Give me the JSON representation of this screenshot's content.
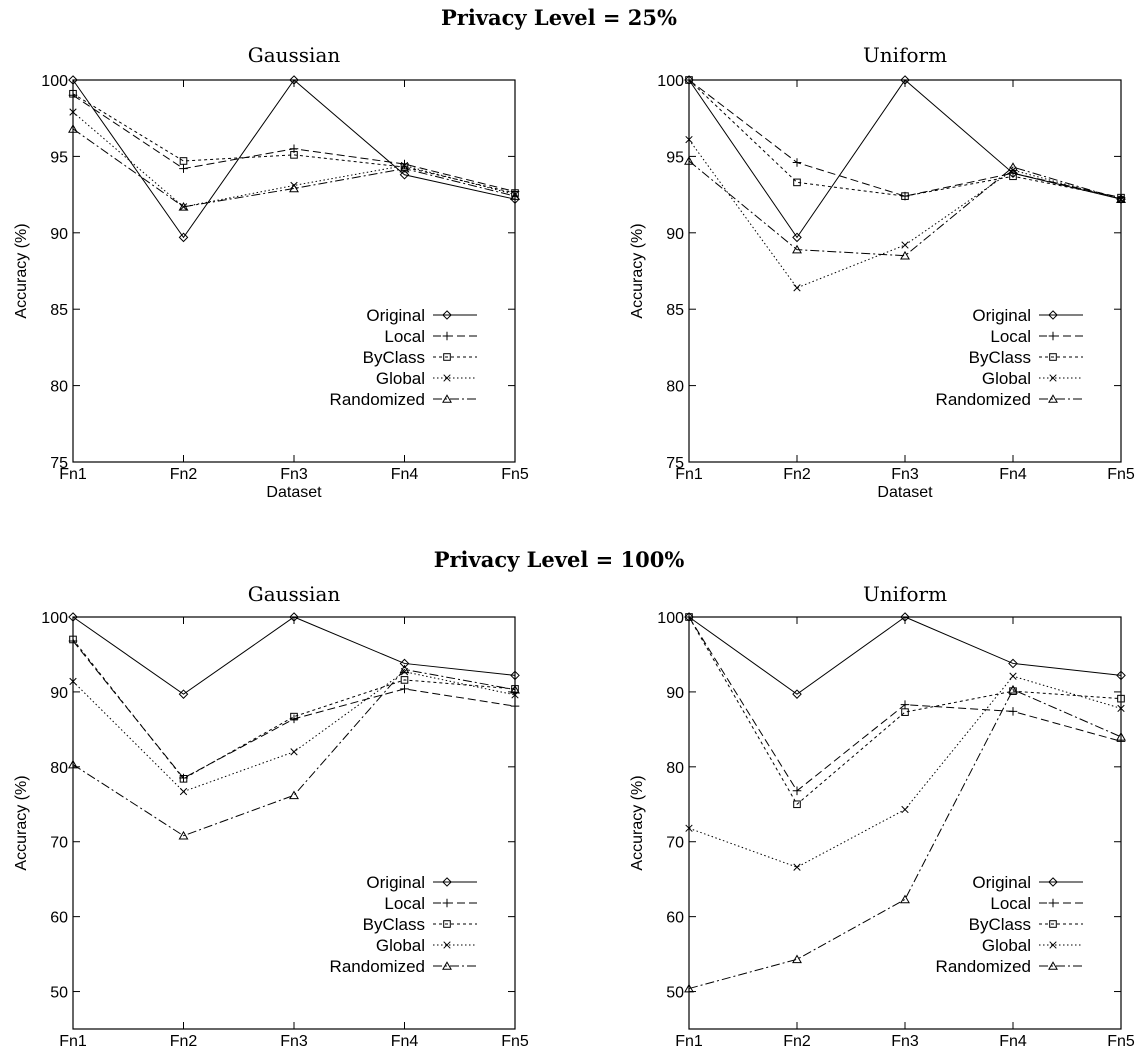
{
  "section_titles": [
    "Privacy Level = 25%",
    "Privacy Level = 100%"
  ],
  "styles": {
    "Original": {
      "dash": "",
      "marker": "diamond"
    },
    "Local": {
      "dash": "8,4",
      "marker": "plus"
    },
    "ByClass": {
      "dash": "3,3",
      "marker": "square"
    },
    "Global": {
      "dash": "1.5,2.5",
      "marker": "cross"
    },
    "Randomized": {
      "dash": "9,3,2,3",
      "marker": "triangle"
    }
  },
  "chart_data": [
    {
      "type": "line",
      "title": "Gaussian",
      "xlabel": "Dataset",
      "ylabel": "Accuracy (%)",
      "categories": [
        "Fn1",
        "Fn2",
        "Fn3",
        "Fn4",
        "Fn5"
      ],
      "ylim": [
        75,
        100
      ],
      "yticks": [
        75,
        80,
        85,
        90,
        95,
        100
      ],
      "legend_position": "bottom-right",
      "series": [
        {
          "name": "Original",
          "values": [
            100,
            89.7,
            100,
            93.8,
            92.2
          ]
        },
        {
          "name": "Local",
          "values": [
            99.0,
            94.2,
            95.5,
            94.5,
            92.7
          ]
        },
        {
          "name": "ByClass",
          "values": [
            99.1,
            94.7,
            95.1,
            94.3,
            92.6
          ]
        },
        {
          "name": "Global",
          "values": [
            97.9,
            91.7,
            93.1,
            94.4,
            92.5
          ]
        },
        {
          "name": "Randomized",
          "values": [
            96.8,
            91.7,
            92.9,
            94.2,
            92.4
          ]
        }
      ]
    },
    {
      "type": "line",
      "title": "Uniform",
      "xlabel": "Dataset",
      "ylabel": "Accuracy (%)",
      "categories": [
        "Fn1",
        "Fn2",
        "Fn3",
        "Fn4",
        "Fn5"
      ],
      "ylim": [
        75,
        100
      ],
      "yticks": [
        75,
        80,
        85,
        90,
        95,
        100
      ],
      "legend_position": "bottom-right",
      "series": [
        {
          "name": "Original",
          "values": [
            100,
            89.7,
            100,
            93.9,
            92.2
          ]
        },
        {
          "name": "Local",
          "values": [
            100,
            94.6,
            92.4,
            93.9,
            92.3
          ]
        },
        {
          "name": "ByClass",
          "values": [
            100,
            93.3,
            92.4,
            93.7,
            92.3
          ]
        },
        {
          "name": "Global",
          "values": [
            96.1,
            86.4,
            89.2,
            94.1,
            92.2
          ]
        },
        {
          "name": "Randomized",
          "values": [
            94.7,
            88.9,
            88.5,
            94.3,
            92.2
          ]
        }
      ]
    },
    {
      "type": "line",
      "title": "Gaussian",
      "xlabel": "Dataset",
      "ylabel": "Accuracy (%)",
      "categories": [
        "Fn1",
        "Fn2",
        "Fn3",
        "Fn4",
        "Fn5"
      ],
      "ylim": [
        45,
        100
      ],
      "yticks": [
        50,
        60,
        70,
        80,
        90,
        100
      ],
      "legend_position": "bottom-right",
      "series": [
        {
          "name": "Original",
          "values": [
            100,
            89.7,
            100,
            93.8,
            92.2
          ]
        },
        {
          "name": "Local",
          "values": [
            96.8,
            78.5,
            86.4,
            90.4,
            88.1
          ]
        },
        {
          "name": "ByClass",
          "values": [
            97.0,
            78.4,
            86.7,
            91.6,
            90.4
          ]
        },
        {
          "name": "Global",
          "values": [
            91.4,
            76.7,
            82.0,
            92.7,
            89.6
          ]
        },
        {
          "name": "Randomized",
          "values": [
            80.3,
            70.8,
            76.2,
            93.0,
            90.3
          ]
        }
      ]
    },
    {
      "type": "line",
      "title": "Uniform",
      "xlabel": "Dataset",
      "ylabel": "Accuracy (%)",
      "categories": [
        "Fn1",
        "Fn2",
        "Fn3",
        "Fn4",
        "Fn5"
      ],
      "ylim": [
        45,
        100
      ],
      "yticks": [
        50,
        60,
        70,
        80,
        90,
        100
      ],
      "legend_position": "bottom-right",
      "series": [
        {
          "name": "Original",
          "values": [
            100,
            89.7,
            100,
            93.8,
            92.2
          ]
        },
        {
          "name": "Local",
          "values": [
            100,
            76.8,
            88.3,
            87.4,
            83.4
          ]
        },
        {
          "name": "ByClass",
          "values": [
            100,
            75.0,
            87.3,
            90.1,
            89.1
          ]
        },
        {
          "name": "Global",
          "values": [
            71.8,
            66.6,
            74.3,
            92.1,
            87.8
          ]
        },
        {
          "name": "Randomized",
          "values": [
            50.4,
            54.3,
            62.3,
            90.3,
            84.0
          ]
        }
      ]
    }
  ]
}
